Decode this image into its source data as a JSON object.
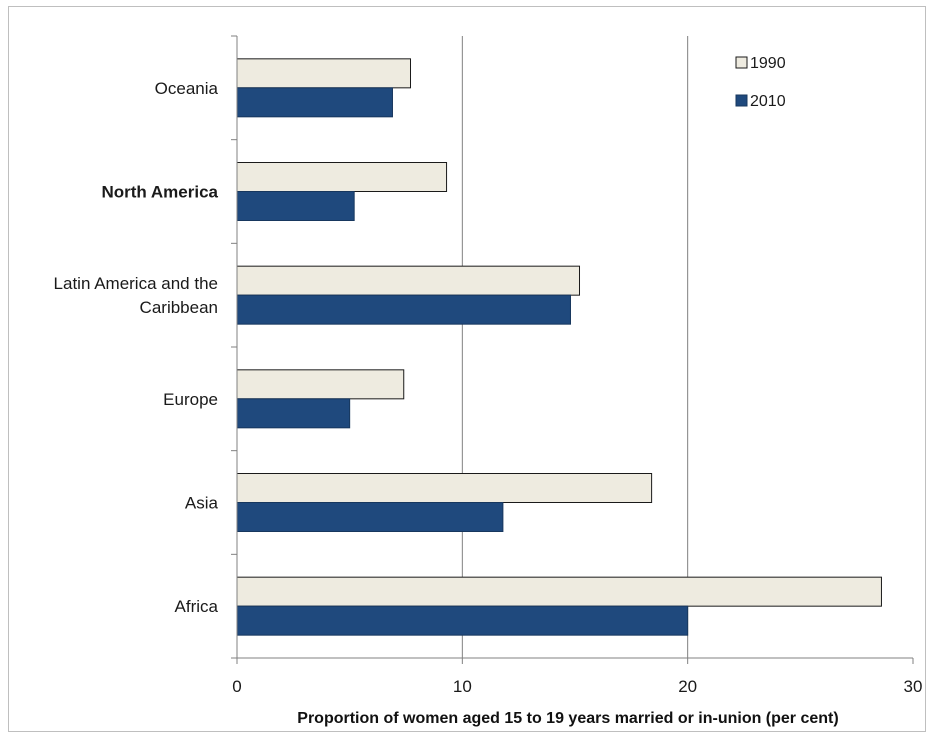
{
  "chart_data": {
    "type": "bar",
    "orientation": "horizontal",
    "categories": [
      "Oceania",
      "North America",
      "Latin America and the Caribbean",
      "Europe",
      "Asia",
      "Africa"
    ],
    "category_lines": [
      [
        "Oceania"
      ],
      [
        "North America"
      ],
      [
        "Latin America and the",
        "Caribbean"
      ],
      [
        "Europe"
      ],
      [
        "Asia"
      ],
      [
        "Africa"
      ]
    ],
    "bold_categories": [
      "North America"
    ],
    "series": [
      {
        "name": "1990",
        "color": "#eeebe0",
        "values": [
          7.7,
          9.3,
          15.2,
          7.4,
          18.4,
          28.6
        ]
      },
      {
        "name": "2010",
        "color": "#1f497d",
        "values": [
          6.9,
          5.2,
          14.8,
          5.0,
          11.8,
          20.0
        ]
      }
    ],
    "xlabel": "Proportion of women aged 15 to 19 years married or in-union (per cent)",
    "xlim": [
      0,
      30
    ],
    "xticks": [
      "0",
      "10",
      "20",
      "30"
    ],
    "grid": true,
    "legend_position": "top-right"
  }
}
